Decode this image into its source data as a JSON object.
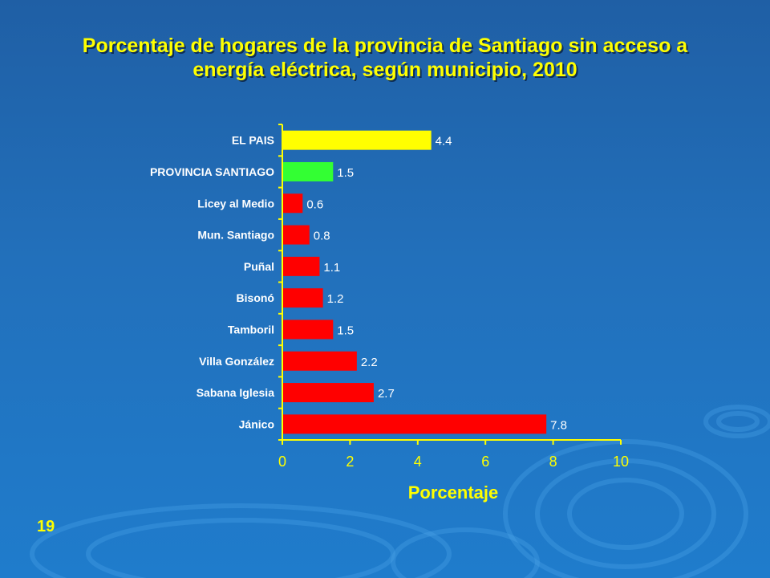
{
  "slide": {
    "title_line1": "Porcentaje de hogares de la provincia de Santiago sin acceso a",
    "title_line2": "energía eléctrica, según municipio, 2010",
    "page_number": "19"
  },
  "colors": {
    "background": "#2270bb",
    "title": "#ffff00",
    "axis": "#ffff00",
    "country_bar": "#ffff00",
    "province_bar": "#33ff33",
    "municipio_bar": "#ff0000"
  },
  "chart_data": {
    "type": "bar",
    "orientation": "horizontal",
    "title": "Porcentaje de hogares de la provincia de Santiago sin acceso a energía eléctrica, según municipio, 2010",
    "xlabel": "Porcentaje",
    "ylabel": "",
    "xlim": [
      0,
      10
    ],
    "xticks": [
      "0",
      "2",
      "4",
      "6",
      "8",
      "10"
    ],
    "grid": false,
    "categories": [
      "EL PAIS",
      "PROVINCIA SANTIAGO",
      "Licey al Medio",
      "Mun. Santiago",
      "Puñal",
      "Bisonó",
      "Tamboril",
      "Villa González",
      "Sabana Iglesia",
      "Jánico"
    ],
    "values": [
      4.4,
      1.5,
      0.6,
      0.8,
      1.1,
      1.2,
      1.5,
      2.2,
      2.7,
      7.8
    ],
    "data_labels": [
      "4.4",
      "1.5",
      "0.6",
      "0.8",
      "1.1",
      "1.2",
      "1.5",
      "2.2",
      "2.7",
      "7.8"
    ],
    "bar_colors": [
      "#ffff00",
      "#33ff33",
      "#ff0000",
      "#ff0000",
      "#ff0000",
      "#ff0000",
      "#ff0000",
      "#ff0000",
      "#ff0000",
      "#ff0000"
    ]
  }
}
